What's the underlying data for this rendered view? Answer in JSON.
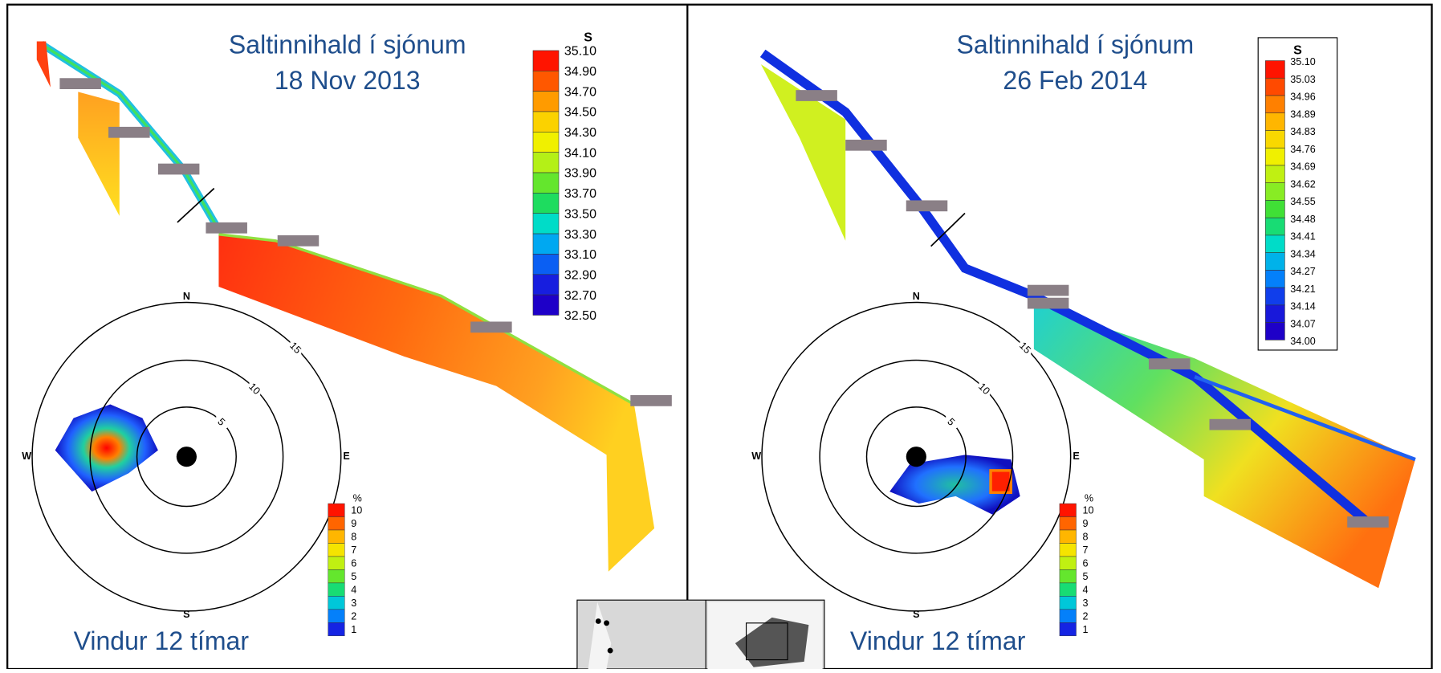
{
  "panels": [
    {
      "title": [
        "Saltinnihald í sjónum",
        "18 Nov 2013"
      ],
      "salinity_legend": {
        "title": "S",
        "labels": [
          "35.10",
          "34.90",
          "34.70",
          "34.50",
          "34.30",
          "34.10",
          "33.90",
          "33.70",
          "33.50",
          "33.30",
          "33.10",
          "32.90",
          "32.70",
          "32.50"
        ]
      },
      "wind_rose": {
        "directions": [
          "N",
          "E",
          "S",
          "W"
        ],
        "rings": [
          "5",
          "10",
          "15"
        ],
        "legend_title": "%",
        "legend_labels": [
          "10",
          "9",
          "8",
          "7",
          "6",
          "5",
          "4",
          "3",
          "2",
          "1"
        ]
      },
      "caption": "Vindur  12 tímar"
    },
    {
      "title": [
        "Saltinnihald í sjónum",
        "26 Feb 2014"
      ],
      "salinity_legend": {
        "title": "S",
        "labels": [
          "35.10",
          "35.03",
          "34.96",
          "34.89",
          "34.83",
          "34.76",
          "34.69",
          "34.62",
          "34.55",
          "34.48",
          "34.41",
          "34.34",
          "34.27",
          "34.21",
          "34.14",
          "34.07",
          "34.00"
        ]
      },
      "wind_rose": {
        "directions": [
          "N",
          "E",
          "S",
          "W"
        ],
        "rings": [
          "5",
          "10",
          "15"
        ],
        "legend_title": "%",
        "legend_labels": [
          "10",
          "9",
          "8",
          "7",
          "6",
          "5",
          "4",
          "3",
          "2",
          "1"
        ]
      },
      "caption": "Vindur  12 tímar"
    }
  ]
}
